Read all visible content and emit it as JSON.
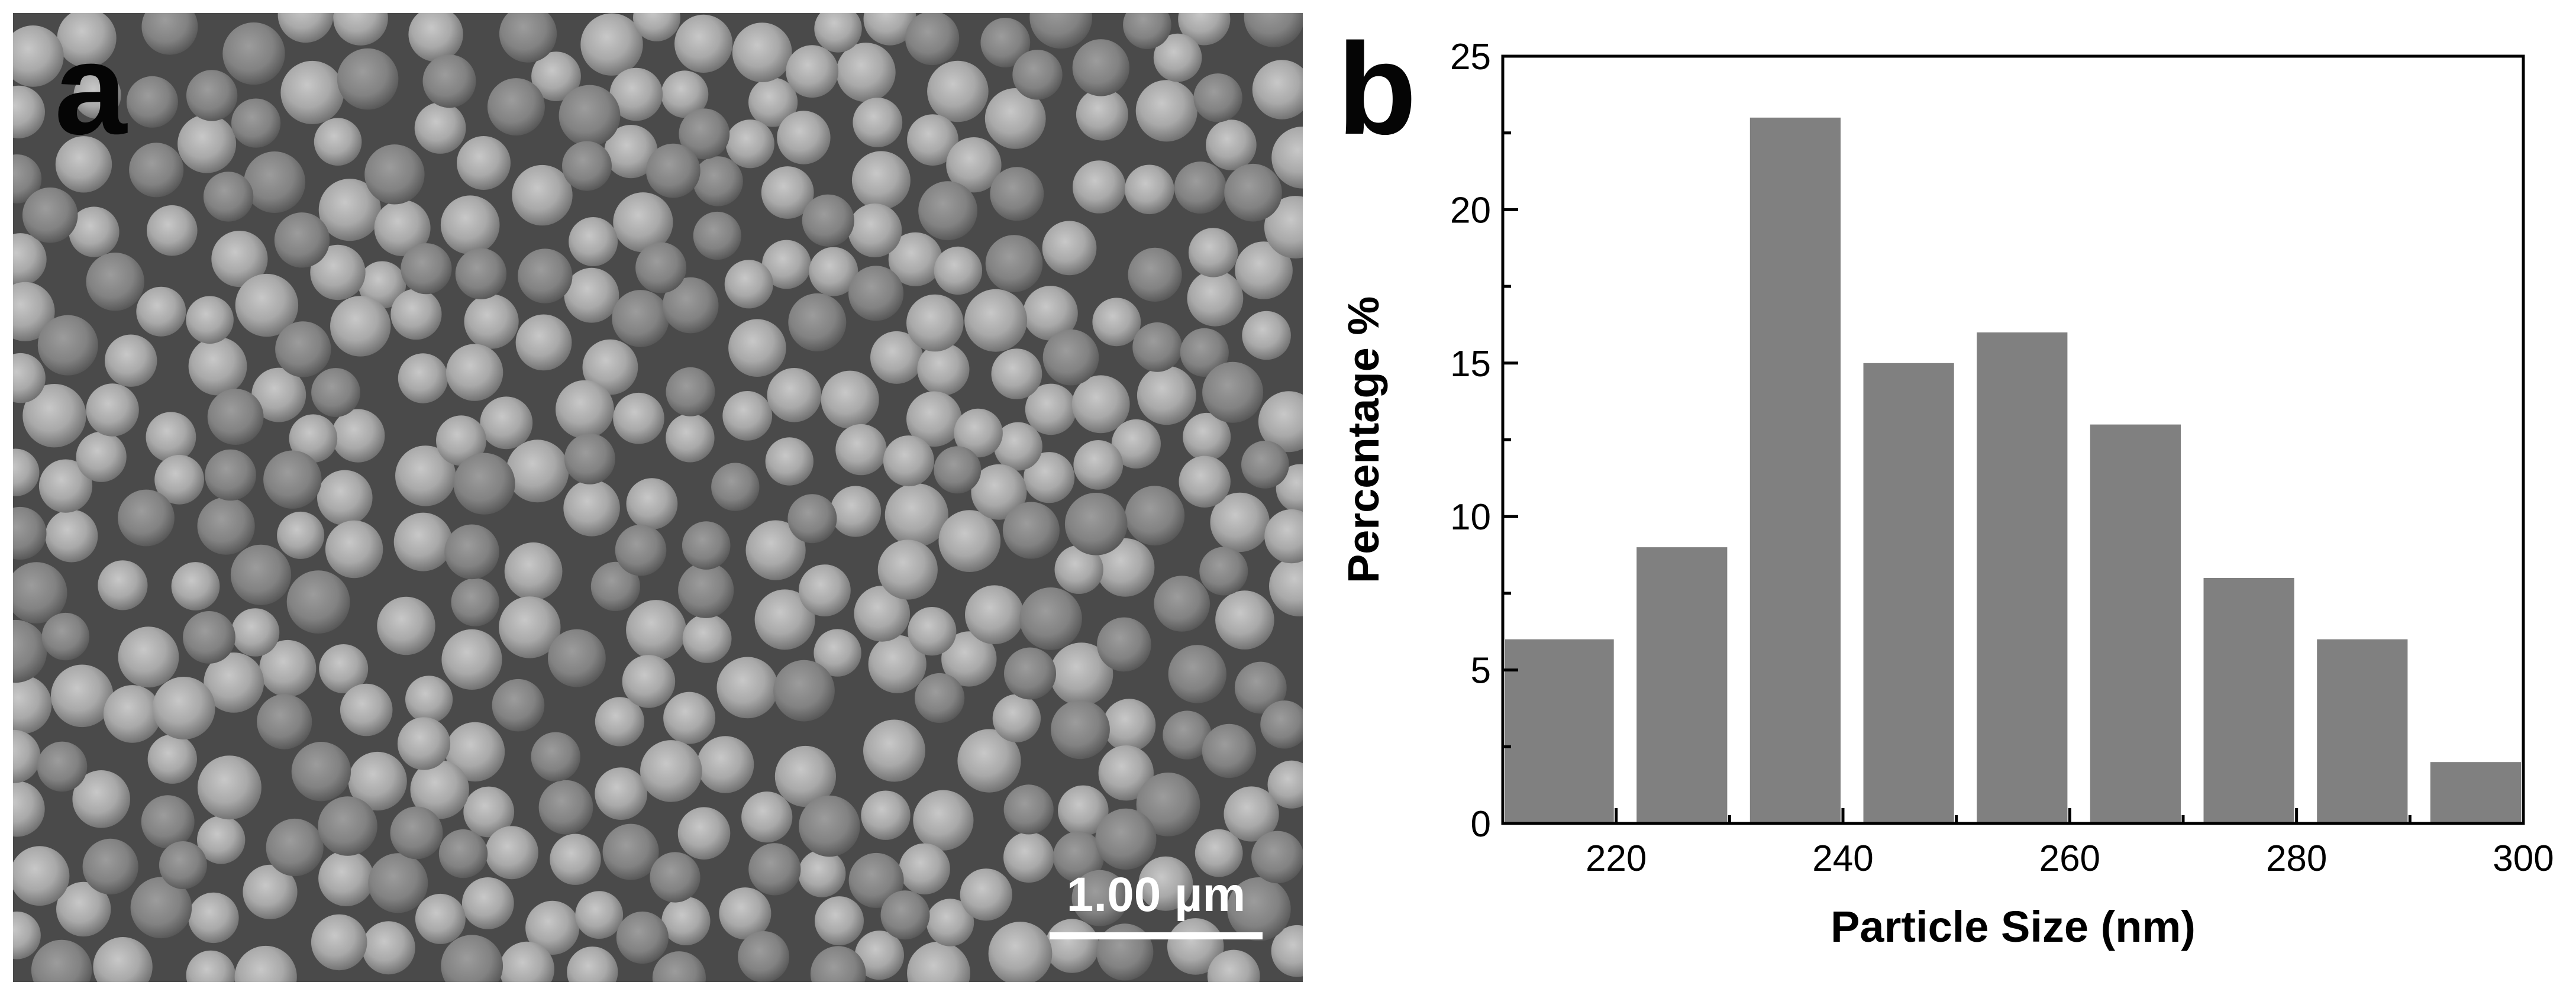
{
  "panel_a": {
    "letter": "a",
    "scale_bar_label": "1.00 µm"
  },
  "panel_b": {
    "letter": "b"
  },
  "chart_data": {
    "type": "bar",
    "title": "",
    "xlabel": "Particle Size (nm)",
    "ylabel": "Percentage %",
    "x_centers": [
      215,
      225,
      235,
      245,
      255,
      265,
      275,
      285,
      295
    ],
    "values": [
      6,
      9,
      23,
      15,
      16,
      13,
      8,
      6,
      2
    ],
    "bin_width": 10,
    "xlim": [
      210,
      300
    ],
    "ylim": [
      0,
      25
    ],
    "xticks": [
      220,
      240,
      260,
      280,
      300
    ],
    "yticks": [
      0,
      5,
      10,
      15,
      20,
      25
    ],
    "bar_color": "#808080",
    "grid": false,
    "legend": "none"
  }
}
